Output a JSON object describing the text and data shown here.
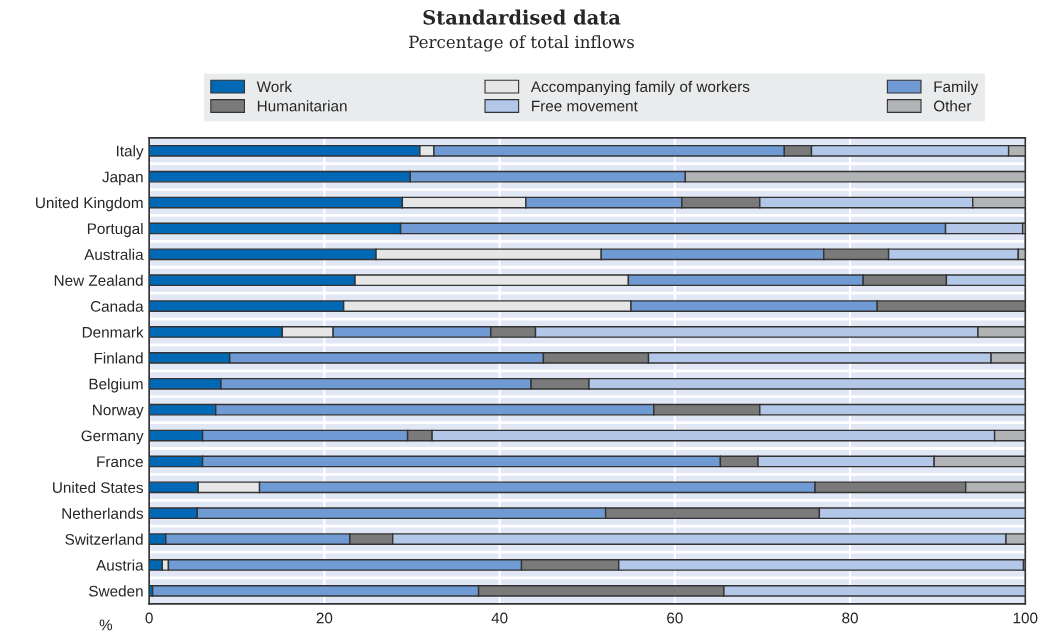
{
  "chart_data": {
    "type": "bar",
    "orientation": "horizontal",
    "stacked": true,
    "title": "Standardised data",
    "subtitle": "Percentage of total inflows",
    "xlabel": "%",
    "categories": [
      "Italy",
      "Japan",
      "United Kingdom",
      "Portugal",
      "Australia",
      "New Zealand",
      "Canada",
      "Denmark",
      "Finland",
      "Belgium",
      "Norway",
      "Germany",
      "France",
      "United States",
      "Netherlands",
      "Switzerland",
      "Austria",
      "Sweden"
    ],
    "series": [
      {
        "name": "Work",
        "color": "#0068b4",
        "values": [
          30.9,
          29.8,
          28.9,
          28.7,
          25.9,
          23.5,
          22.2,
          15.2,
          9.2,
          8.2,
          7.6,
          6.1,
          6.1,
          5.6,
          5.5,
          1.9,
          1.5,
          0.4
        ]
      },
      {
        "name": "Accompanying family of workers",
        "color": "#e6e6e6",
        "values": [
          1.6,
          null,
          14.1,
          null,
          25.7,
          31.2,
          32.8,
          5.8,
          null,
          null,
          null,
          null,
          null,
          7.0,
          null,
          null,
          0.7,
          null
        ]
      },
      {
        "name": "Family",
        "color": "#6f9ad3",
        "values": [
          40.0,
          31.4,
          17.8,
          62.2,
          25.4,
          26.8,
          28.1,
          18.0,
          35.8,
          35.4,
          50.0,
          23.4,
          59.1,
          63.4,
          46.6,
          21.0,
          40.3,
          37.2
        ]
      },
      {
        "name": "Humanitarian",
        "color": "#7a7a7a",
        "values": [
          3.1,
          null,
          8.9,
          null,
          7.4,
          9.5,
          16.9,
          5.1,
          12.0,
          6.6,
          12.1,
          2.8,
          4.3,
          17.2,
          24.4,
          4.9,
          11.1,
          28.0
        ]
      },
      {
        "name": "Free movement",
        "color": "#b3c7e8",
        "values": [
          22.5,
          null,
          24.3,
          8.8,
          14.8,
          9.0,
          null,
          50.5,
          39.1,
          49.8,
          30.3,
          64.2,
          20.1,
          null,
          23.5,
          70.0,
          46.2,
          34.4
        ]
      },
      {
        "name": "Other",
        "color": "#b1b3b5",
        "values": [
          1.9,
          38.8,
          6.0,
          0.3,
          0.8,
          null,
          null,
          5.4,
          3.9,
          null,
          null,
          3.5,
          10.4,
          6.8,
          null,
          2.2,
          0.2,
          null
        ]
      }
    ],
    "xlim": [
      0,
      100
    ],
    "xticks": [
      0,
      20,
      40,
      60,
      80,
      100
    ],
    "grid": "x",
    "legend": "top"
  }
}
